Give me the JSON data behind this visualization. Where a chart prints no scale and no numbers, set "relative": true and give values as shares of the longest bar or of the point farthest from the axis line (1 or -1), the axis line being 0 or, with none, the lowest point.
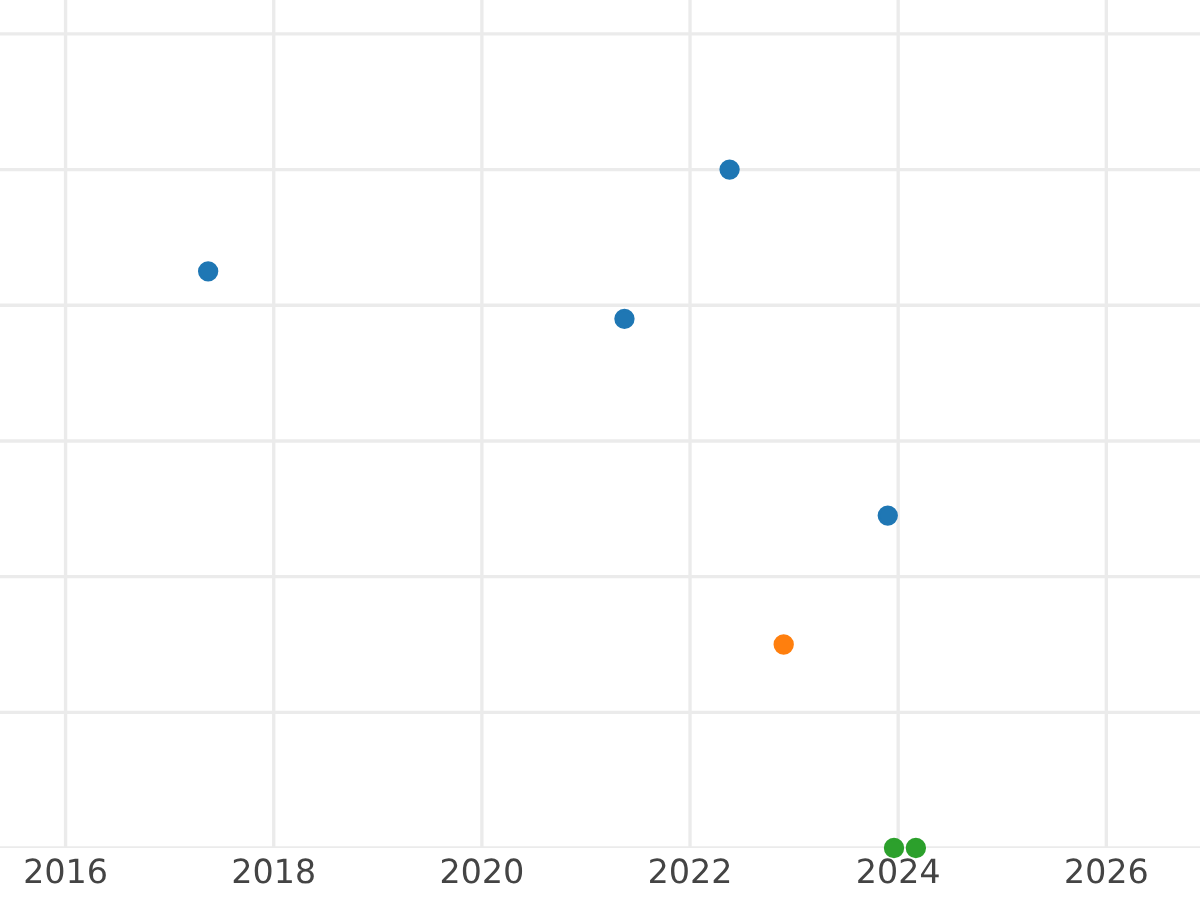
{
  "chart_data": {
    "type": "scatter",
    "relative": true,
    "grid": true,
    "tick_labels": "x",
    "marker": "circle",
    "xlim": [
      2015.37,
      2026.9
    ],
    "xticks": [
      2016,
      2018,
      2020,
      2022,
      2024,
      2026
    ],
    "series": [
      {
        "color": "#1f77b4",
        "x": [
          2017.37,
          2021.37,
          2022.38,
          2023.9
        ],
        "values": [
          0.85,
          0.78,
          1,
          0.49
        ]
      },
      {
        "color": "#ff7f0e",
        "x": [
          2022.9
        ],
        "values": [
          0.3
        ]
      },
      {
        "color": "#2ca02c",
        "x": [
          2023.96,
          2024.17
        ],
        "values": [
          0,
          0
        ]
      }
    ]
  }
}
